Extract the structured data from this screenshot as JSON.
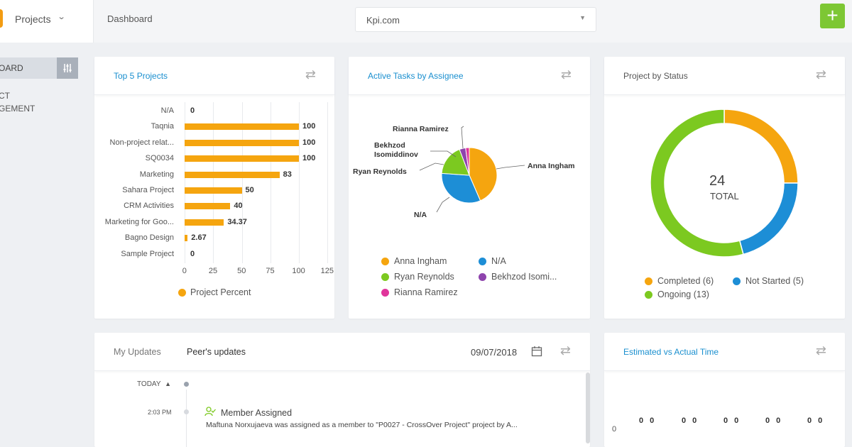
{
  "topbar": {
    "project_selector": "Projects",
    "page_title": "Dashboard",
    "site_select_value": "Kpi.com",
    "add_button": "+"
  },
  "sidebar": {
    "active_item": "OARD",
    "lines": [
      "CT",
      "GEMENT"
    ]
  },
  "top_projects": {
    "title": "Top 5 Projects",
    "legend": "Project Percent",
    "colors": {
      "bar": "#f5a50f"
    }
  },
  "active_tasks": {
    "title": "Active Tasks by Assignee",
    "labels": [
      "Rianna Ramirez",
      "Bekhzod",
      "Isomiddinov",
      "Ryan Reynolds",
      "Anna Ingham",
      "N/A"
    ],
    "legend": [
      "Anna Ingham",
      "N/A",
      "Ryan Reynolds",
      "Bekhzod Isomi...",
      "Rianna Ramirez"
    ]
  },
  "project_status": {
    "title": "Project by Status",
    "total_value": "24",
    "total_label": "TOTAL",
    "legend": [
      "Completed (6)",
      "Not Started (5)",
      "Ongoing (13)"
    ]
  },
  "updates": {
    "tab_my": "My Updates",
    "tab_peer": "Peer's updates",
    "date": "09/07/2018",
    "today_label": "TODAY",
    "entry": {
      "time": "2:03 PM",
      "title": "Member Assigned",
      "text": "Maftuna Norxujaeva was assigned as a member to \"P0027 - CrossOver Project\" project by A..."
    }
  },
  "estimated": {
    "title": "Estimated vs Actual Time",
    "axis_zero": "0",
    "pairs": [
      "0 0",
      "0 0",
      "0 0",
      "0 0",
      "0 0"
    ]
  },
  "chart_data": [
    {
      "type": "bar",
      "orientation": "horizontal",
      "categories": [
        "N/A",
        "Taqnia",
        "Non-project relat...",
        "SQ0034",
        "Marketing",
        "Sahara Project",
        "CRM Activities",
        "Marketing for Goo...",
        "Bagno Design",
        "Sample Project"
      ],
      "series": [
        {
          "name": "Project Percent",
          "values": [
            0,
            100,
            100,
            100,
            83,
            50,
            40,
            34.37,
            2.67,
            0
          ]
        }
      ],
      "value_labels": [
        "0",
        "100",
        "100",
        "100",
        "83",
        "50",
        "40",
        "34.37",
        "2.67",
        "0"
      ],
      "xticks": [
        "0",
        "25",
        "50",
        "75",
        "100",
        "125"
      ],
      "xlim": [
        0,
        125
      ],
      "grid": true,
      "legend": "bottom"
    },
    {
      "type": "pie",
      "labels": [
        "Anna Ingham",
        "N/A",
        "Ryan Reynolds",
        "Bekhzod Isomiddinov",
        "Rianna Ramirez"
      ],
      "values": [
        12,
        9,
        5,
        1,
        0.6
      ],
      "colors": [
        "#f5a50f",
        "#1d8ed6",
        "#7cc920",
        "#8e44ad",
        "#e0359b"
      ],
      "legend": "bottom"
    },
    {
      "type": "pie",
      "variant": "donut",
      "labels": [
        "Completed (6)",
        "Not Started (5)",
        "Ongoing (13)"
      ],
      "values": [
        6,
        5,
        13
      ],
      "colors": [
        "#f5a50f",
        "#1d8ed6",
        "#7cc920"
      ],
      "legend": "bottom"
    }
  ]
}
